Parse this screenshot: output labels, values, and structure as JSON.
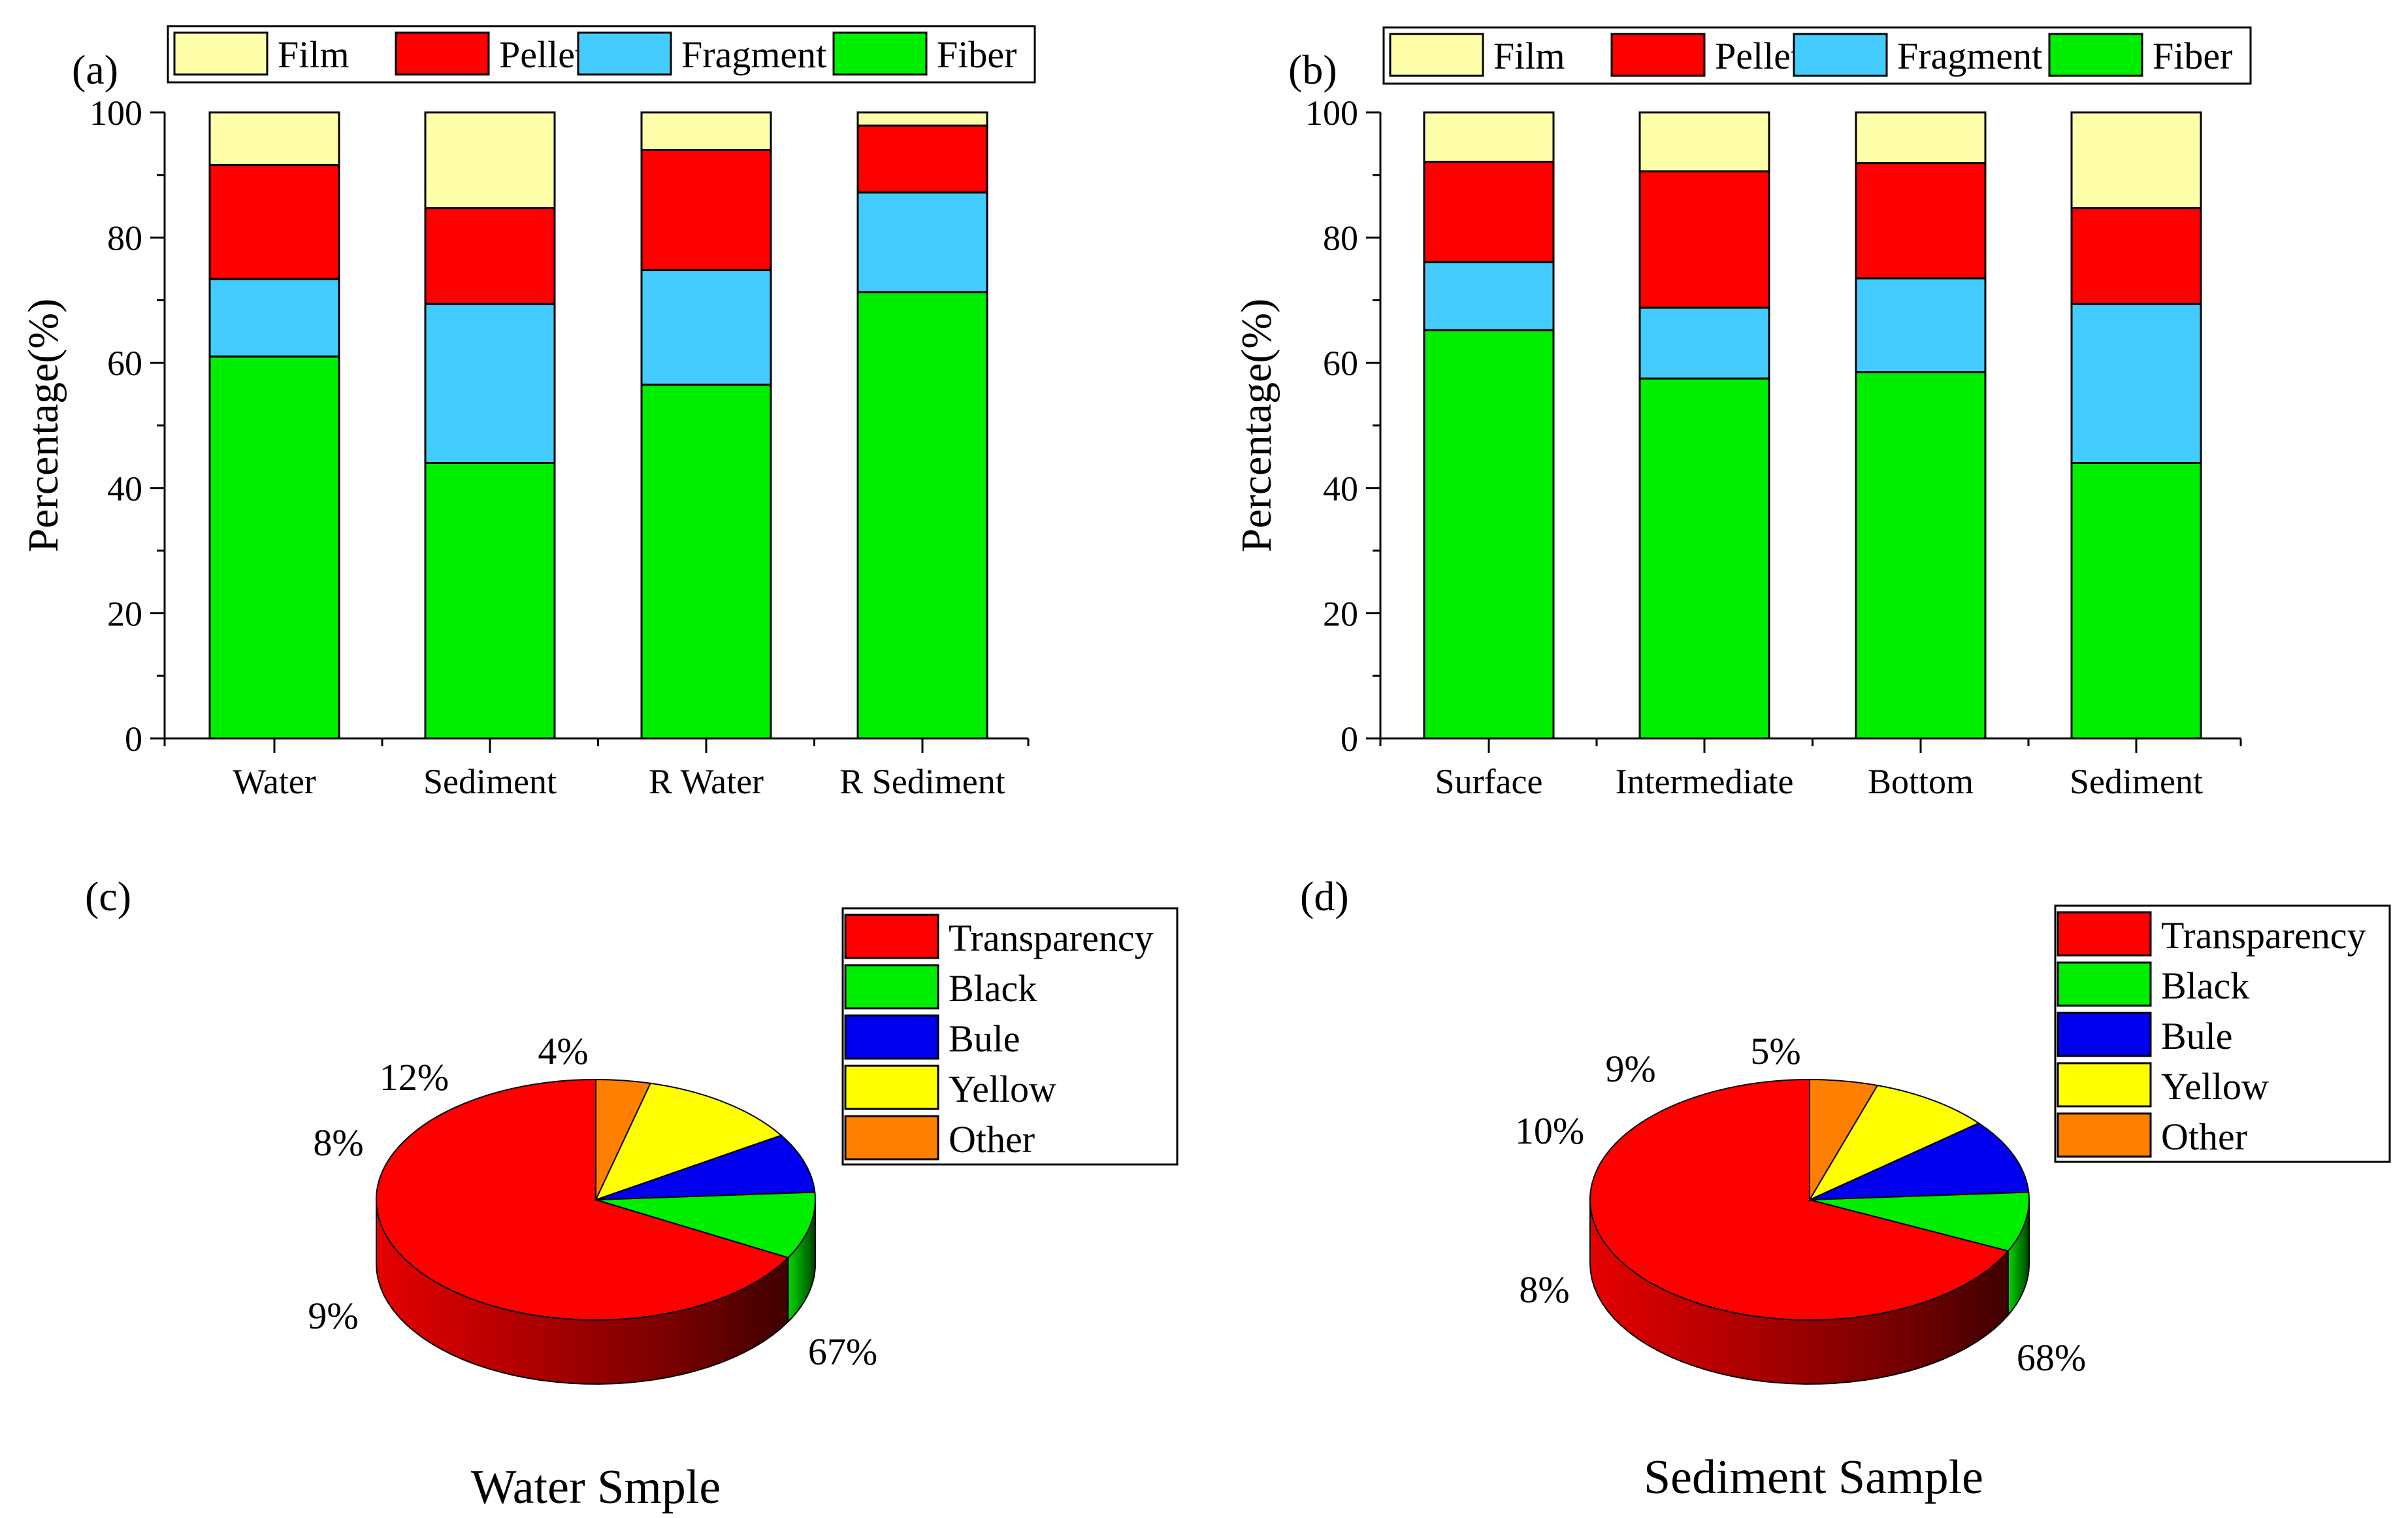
{
  "chart_data": [
    {
      "panel_label": "(a)",
      "type": "bar",
      "stacked": true,
      "ylabel": "Percentage(%)",
      "ylim": [
        0,
        100
      ],
      "yticks": [
        "0",
        "20",
        "40",
        "60",
        "80",
        "100"
      ],
      "categories": [
        "Water",
        "Sediment",
        "R Water",
        "R Sediment"
      ],
      "legend": [
        "Film",
        "Pellet",
        "Fragment",
        "Fiber"
      ],
      "series": [
        {
          "name": "Fiber",
          "color": "#00ee00",
          "values": [
            61,
            44,
            56.5,
            71.3
          ]
        },
        {
          "name": "Fragment",
          "color": "#44ccff",
          "values": [
            12.4,
            25.4,
            18.3,
            15.9
          ]
        },
        {
          "name": "Pellet",
          "color": "#ff0000",
          "values": [
            18.2,
            15.3,
            19.2,
            10.7
          ]
        },
        {
          "name": "Film",
          "color": "#ffffaa",
          "values": [
            8.4,
            15.3,
            6,
            2.1
          ]
        }
      ]
    },
    {
      "panel_label": "(b)",
      "type": "bar",
      "stacked": true,
      "ylabel": "Percentage(%)",
      "ylim": [
        0,
        100
      ],
      "yticks": [
        "0",
        "20",
        "40",
        "60",
        "80",
        "100"
      ],
      "categories": [
        "Surface",
        "Intermediate",
        "Bottom",
        "Sediment"
      ],
      "legend": [
        "Film",
        "Pellet",
        "Fragment",
        "Fiber"
      ],
      "series": [
        {
          "name": "Fiber",
          "color": "#00ee00",
          "values": [
            65.2,
            57.5,
            58.5,
            44
          ]
        },
        {
          "name": "Fragment",
          "color": "#44ccff",
          "values": [
            10.9,
            11.3,
            15,
            25.4
          ]
        },
        {
          "name": "Pellet",
          "color": "#ff0000",
          "values": [
            16,
            21.8,
            18.4,
            15.3
          ]
        },
        {
          "name": "Film",
          "color": "#ffffaa",
          "values": [
            7.9,
            9.4,
            8.1,
            15.3
          ]
        }
      ]
    },
    {
      "panel_label": "(c)",
      "type": "pie",
      "title": "Water Smple",
      "labels": [
        "Transparency",
        "Black",
        "Bule",
        "Yellow",
        "Other"
      ],
      "values": [
        67,
        9,
        8,
        12,
        4
      ],
      "value_labels": [
        "67%",
        "9%",
        "8%",
        "12%",
        "4%"
      ],
      "colors": [
        "#ff0000",
        "#00ee00",
        "#0000ee",
        "#ffff00",
        "#ff7f00"
      ]
    },
    {
      "panel_label": "(d)",
      "type": "pie",
      "title": "Sediment Sample",
      "labels": [
        "Transparency",
        "Black",
        "Bule",
        "Yellow",
        "Other"
      ],
      "values": [
        68,
        8,
        10,
        9,
        5
      ],
      "value_labels": [
        "68%",
        "8%",
        "10%",
        "9%",
        "5%"
      ],
      "colors": [
        "#ff0000",
        "#00ee00",
        "#0000ee",
        "#ffff00",
        "#ff7f00"
      ]
    }
  ]
}
